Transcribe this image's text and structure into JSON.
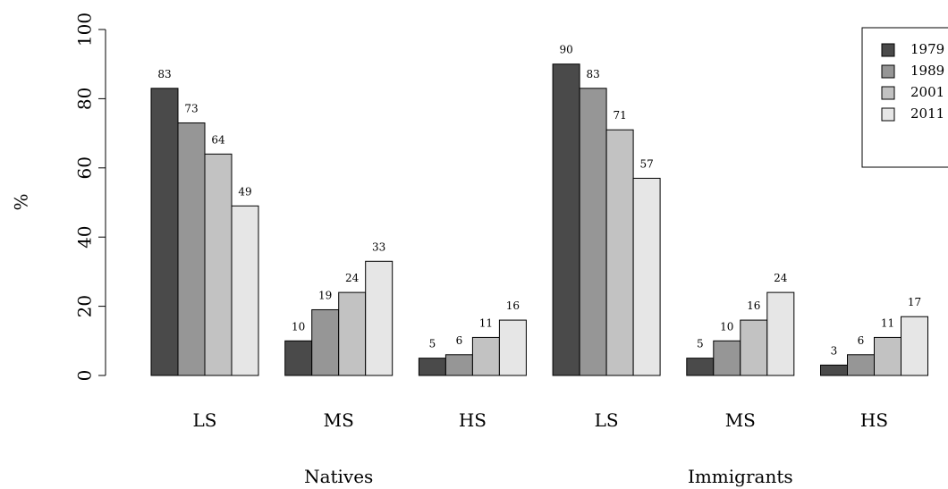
{
  "chart_data": {
    "type": "bar",
    "ylabel": "%",
    "ylim": [
      0,
      100
    ],
    "yticks": [
      0,
      20,
      40,
      60,
      80,
      100
    ],
    "groups": [
      {
        "label": "Natives",
        "categories": [
          "LS",
          "MS",
          "HS"
        ],
        "series": [
          {
            "name": "1979",
            "values": [
              83,
              10,
              5
            ]
          },
          {
            "name": "1989",
            "values": [
              73,
              19,
              6
            ]
          },
          {
            "name": "2001",
            "values": [
              64,
              24,
              11
            ]
          },
          {
            "name": "2011",
            "values": [
              49,
              33,
              16
            ]
          }
        ]
      },
      {
        "label": "Immigrants",
        "categories": [
          "LS",
          "MS",
          "HS"
        ],
        "series": [
          {
            "name": "1979",
            "values": [
              90,
              5,
              3
            ]
          },
          {
            "name": "1989",
            "values": [
              83,
              10,
              6
            ]
          },
          {
            "name": "2001",
            "values": [
              71,
              16,
              11
            ]
          },
          {
            "name": "2011",
            "values": [
              57,
              24,
              17
            ]
          }
        ]
      }
    ],
    "legend": {
      "position": "top-right",
      "entries": [
        "1979",
        "1989",
        "2001",
        "2011"
      ]
    },
    "colors": [
      "#4a4a4a",
      "#969696",
      "#c2c2c2",
      "#e6e6e6"
    ],
    "grid": false
  }
}
